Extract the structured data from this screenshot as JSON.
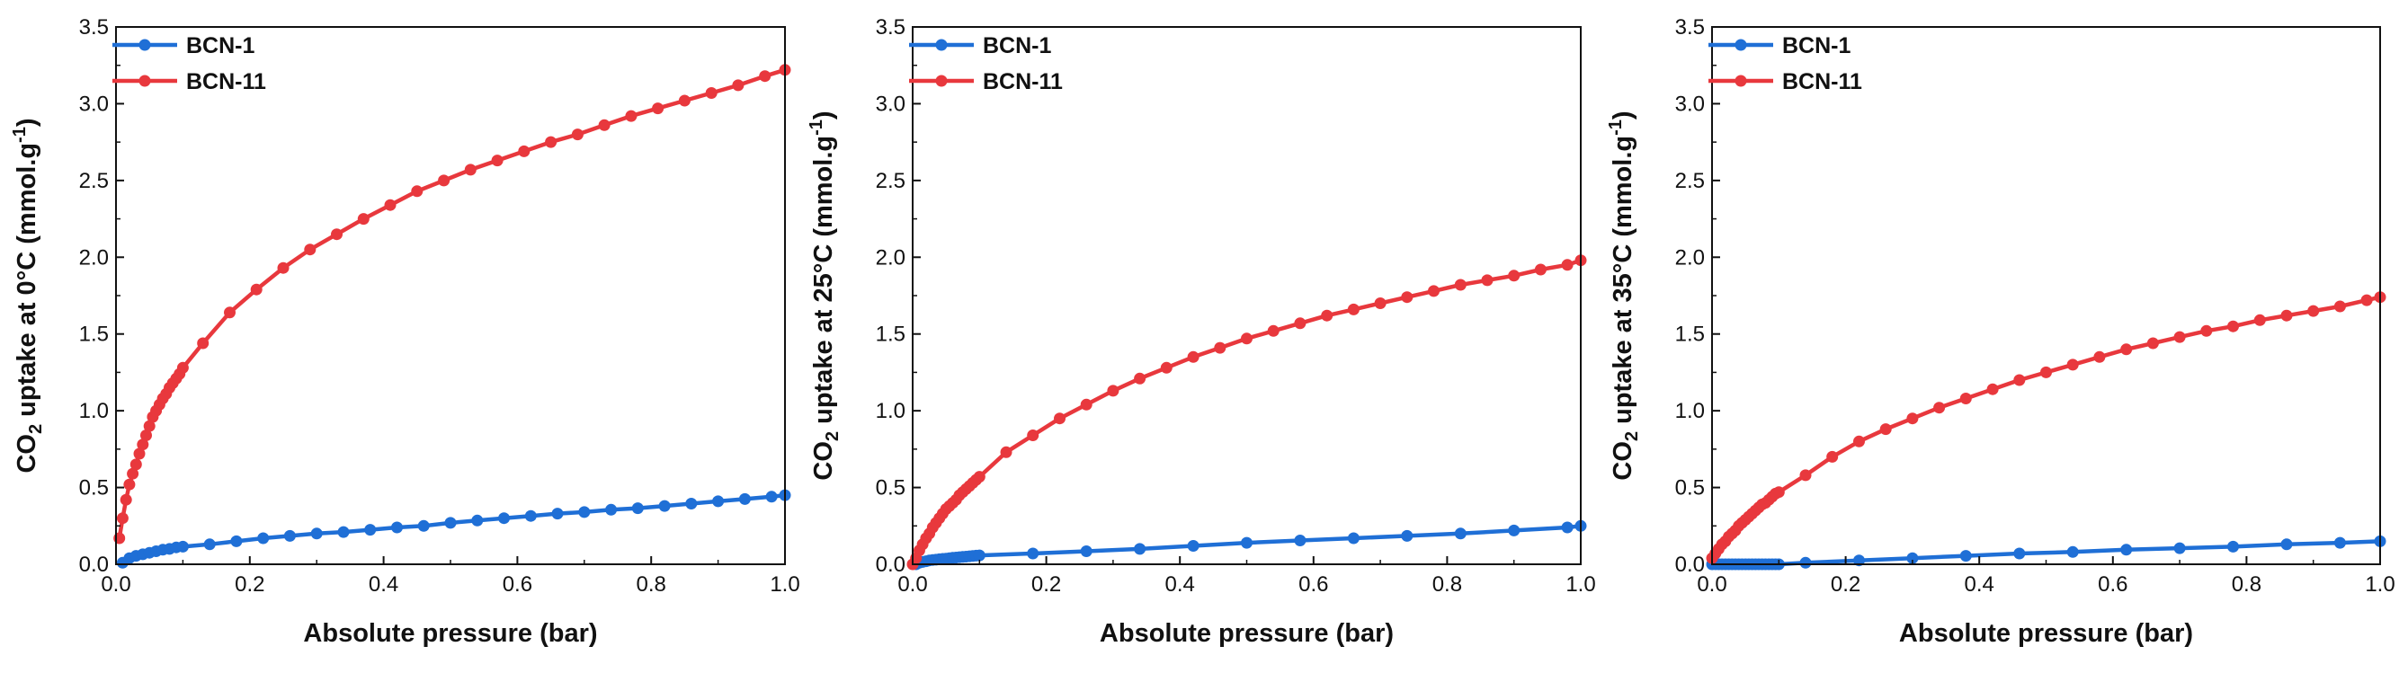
{
  "colors": {
    "blue": "#1f6fd6",
    "red": "#e8383d",
    "axis": "#111111",
    "background": "#ffffff"
  },
  "chart_data": [
    {
      "type": "line",
      "xlabel": "Absolute pressure (bar)",
      "ylabel": {
        "prefix": "CO",
        "sub": "2",
        "main": " uptake at 0°C (mmol.g",
        "sup": "-1",
        "suffix": ")"
      },
      "xlim": [
        0,
        1.0
      ],
      "ylim": [
        0,
        3.5
      ],
      "xticks": [
        "0.0",
        "0.2",
        "0.4",
        "0.6",
        "0.8",
        "1.0"
      ],
      "yticks": [
        "0.0",
        "0.5",
        "1.0",
        "1.5",
        "2.0",
        "2.5",
        "3.0",
        "3.5"
      ],
      "legend_position": "top-left",
      "series": [
        {
          "name": "BCN-1",
          "color": "blue",
          "x": [
            0.01,
            0.02,
            0.03,
            0.04,
            0.05,
            0.06,
            0.07,
            0.08,
            0.09,
            0.1,
            0.14,
            0.18,
            0.22,
            0.26,
            0.3,
            0.34,
            0.38,
            0.42,
            0.46,
            0.5,
            0.54,
            0.58,
            0.62,
            0.66,
            0.7,
            0.74,
            0.78,
            0.82,
            0.86,
            0.9,
            0.94,
            0.98,
            1.0
          ],
          "y": [
            0.01,
            0.04,
            0.055,
            0.065,
            0.075,
            0.085,
            0.095,
            0.1,
            0.11,
            0.115,
            0.13,
            0.15,
            0.17,
            0.185,
            0.2,
            0.21,
            0.225,
            0.24,
            0.25,
            0.27,
            0.285,
            0.3,
            0.315,
            0.33,
            0.34,
            0.355,
            0.365,
            0.38,
            0.395,
            0.41,
            0.425,
            0.44,
            0.45
          ]
        },
        {
          "name": "BCN-11",
          "color": "red",
          "x": [
            0.005,
            0.01,
            0.015,
            0.02,
            0.025,
            0.03,
            0.035,
            0.04,
            0.045,
            0.05,
            0.055,
            0.06,
            0.065,
            0.07,
            0.075,
            0.08,
            0.085,
            0.09,
            0.095,
            0.1,
            0.13,
            0.17,
            0.21,
            0.25,
            0.29,
            0.33,
            0.37,
            0.41,
            0.45,
            0.49,
            0.53,
            0.57,
            0.61,
            0.65,
            0.69,
            0.73,
            0.77,
            0.81,
            0.85,
            0.89,
            0.93,
            0.97,
            1.0
          ],
          "y": [
            0.17,
            0.3,
            0.42,
            0.52,
            0.59,
            0.65,
            0.72,
            0.78,
            0.84,
            0.9,
            0.96,
            1.0,
            1.04,
            1.08,
            1.11,
            1.15,
            1.18,
            1.21,
            1.24,
            1.28,
            1.44,
            1.64,
            1.79,
            1.93,
            2.05,
            2.15,
            2.25,
            2.34,
            2.43,
            2.5,
            2.57,
            2.63,
            2.69,
            2.75,
            2.8,
            2.86,
            2.92,
            2.97,
            3.02,
            3.07,
            3.12,
            3.18,
            3.22
          ]
        }
      ]
    },
    {
      "type": "line",
      "xlabel": "Absolute pressure (bar)",
      "ylabel": {
        "prefix": "CO",
        "sub": "2",
        "main": " uptake at 25°C (mmol.g",
        "sup": "-1",
        "suffix": ")"
      },
      "xlim": [
        0,
        1.0
      ],
      "ylim": [
        0,
        3.5
      ],
      "xticks": [
        "0.0",
        "0.2",
        "0.4",
        "0.6",
        "0.8",
        "1.0"
      ],
      "yticks": [
        "0.0",
        "0.5",
        "1.0",
        "1.5",
        "2.0",
        "2.5",
        "3.0",
        "3.5"
      ],
      "legend_position": "top-left",
      "series": [
        {
          "name": "BCN-1",
          "color": "blue",
          "x": [
            0.005,
            0.01,
            0.015,
            0.02,
            0.025,
            0.03,
            0.035,
            0.04,
            0.045,
            0.05,
            0.055,
            0.06,
            0.065,
            0.07,
            0.075,
            0.08,
            0.085,
            0.09,
            0.095,
            0.1,
            0.18,
            0.26,
            0.34,
            0.42,
            0.5,
            0.58,
            0.66,
            0.74,
            0.82,
            0.9,
            0.98,
            1.0
          ],
          "y": [
            0.0,
            0.01,
            0.015,
            0.02,
            0.025,
            0.028,
            0.03,
            0.033,
            0.035,
            0.037,
            0.04,
            0.042,
            0.044,
            0.046,
            0.048,
            0.05,
            0.052,
            0.054,
            0.056,
            0.058,
            0.07,
            0.085,
            0.1,
            0.12,
            0.14,
            0.155,
            0.17,
            0.185,
            0.2,
            0.22,
            0.24,
            0.25
          ]
        },
        {
          "name": "BCN-11",
          "color": "red",
          "x": [
            0.0,
            0.005,
            0.01,
            0.015,
            0.02,
            0.025,
            0.03,
            0.035,
            0.04,
            0.045,
            0.05,
            0.055,
            0.06,
            0.065,
            0.07,
            0.075,
            0.08,
            0.085,
            0.09,
            0.095,
            0.1,
            0.14,
            0.18,
            0.22,
            0.26,
            0.3,
            0.34,
            0.38,
            0.42,
            0.46,
            0.5,
            0.54,
            0.58,
            0.62,
            0.66,
            0.7,
            0.74,
            0.78,
            0.82,
            0.86,
            0.9,
            0.94,
            0.98,
            1.0
          ],
          "y": [
            0.0,
            0.04,
            0.09,
            0.13,
            0.17,
            0.2,
            0.24,
            0.27,
            0.3,
            0.33,
            0.36,
            0.38,
            0.4,
            0.42,
            0.45,
            0.47,
            0.49,
            0.51,
            0.53,
            0.55,
            0.57,
            0.73,
            0.84,
            0.95,
            1.04,
            1.13,
            1.21,
            1.28,
            1.35,
            1.41,
            1.47,
            1.52,
            1.57,
            1.62,
            1.66,
            1.7,
            1.74,
            1.78,
            1.82,
            1.85,
            1.88,
            1.92,
            1.95,
            1.98
          ]
        }
      ]
    },
    {
      "type": "line",
      "xlabel": "Absolute pressure (bar)",
      "ylabel": {
        "prefix": "CO",
        "sub": "2",
        "main": " uptake at 35°C (mmol.g",
        "sup": "-1",
        "suffix": ")"
      },
      "xlim": [
        0,
        1.0
      ],
      "ylim": [
        0,
        3.5
      ],
      "xticks": [
        "0.0",
        "0.2",
        "0.4",
        "0.6",
        "0.8",
        "1.0"
      ],
      "yticks": [
        "0.0",
        "0.5",
        "1.0",
        "1.5",
        "2.0",
        "2.5",
        "3.0",
        "3.5"
      ],
      "legend_position": "top-left",
      "series": [
        {
          "name": "BCN-1",
          "color": "blue",
          "x": [
            0.0,
            0.005,
            0.01,
            0.015,
            0.02,
            0.025,
            0.03,
            0.035,
            0.04,
            0.045,
            0.05,
            0.055,
            0.06,
            0.065,
            0.07,
            0.075,
            0.08,
            0.085,
            0.09,
            0.095,
            0.1,
            0.14,
            0.22,
            0.3,
            0.38,
            0.46,
            0.54,
            0.62,
            0.7,
            0.78,
            0.86,
            0.94,
            1.0
          ],
          "y": [
            0.0,
            0.0,
            0.0,
            0.0,
            0.0,
            0.0,
            0.0,
            0.0,
            0.0,
            0.0,
            0.0,
            0.0,
            0.0,
            0.0,
            0.0,
            0.0,
            0.0,
            0.0,
            0.0,
            0.0,
            0.0,
            0.01,
            0.025,
            0.04,
            0.055,
            0.07,
            0.08,
            0.095,
            0.105,
            0.115,
            0.13,
            0.14,
            0.15
          ]
        },
        {
          "name": "BCN-11",
          "color": "red",
          "x": [
            0.0,
            0.005,
            0.01,
            0.015,
            0.02,
            0.025,
            0.03,
            0.035,
            0.04,
            0.045,
            0.05,
            0.055,
            0.06,
            0.065,
            0.07,
            0.075,
            0.08,
            0.085,
            0.09,
            0.095,
            0.1,
            0.14,
            0.18,
            0.22,
            0.26,
            0.3,
            0.34,
            0.38,
            0.42,
            0.46,
            0.5,
            0.54,
            0.58,
            0.62,
            0.66,
            0.7,
            0.74,
            0.78,
            0.82,
            0.86,
            0.9,
            0.94,
            0.98,
            1.0
          ],
          "y": [
            0.04,
            0.07,
            0.1,
            0.13,
            0.15,
            0.18,
            0.2,
            0.22,
            0.25,
            0.27,
            0.29,
            0.31,
            0.33,
            0.35,
            0.37,
            0.39,
            0.4,
            0.42,
            0.44,
            0.46,
            0.47,
            0.58,
            0.7,
            0.8,
            0.88,
            0.95,
            1.02,
            1.08,
            1.14,
            1.2,
            1.25,
            1.3,
            1.35,
            1.4,
            1.44,
            1.48,
            1.52,
            1.55,
            1.59,
            1.62,
            1.65,
            1.68,
            1.72,
            1.74
          ]
        }
      ]
    }
  ]
}
